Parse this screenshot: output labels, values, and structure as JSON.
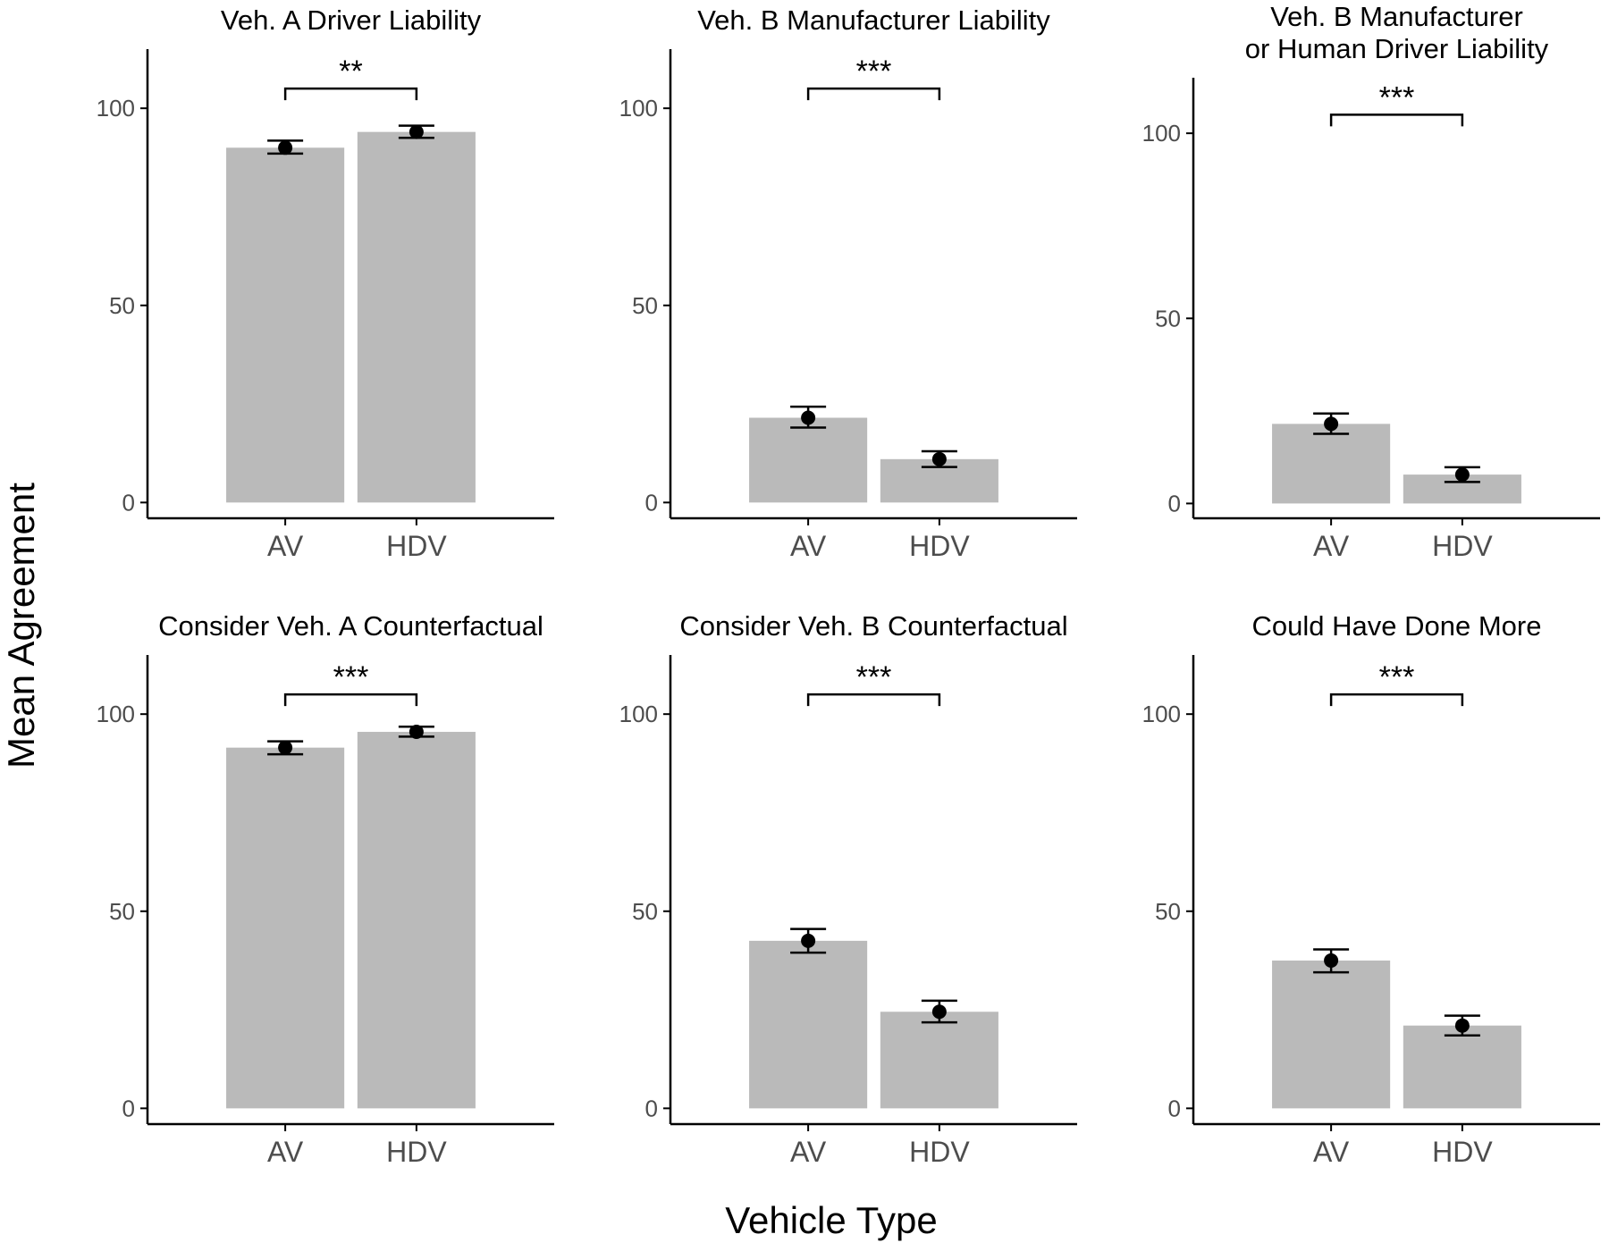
{
  "figure": {
    "xlabel": "Vehicle Type",
    "ylabel": "Mean Agreement"
  },
  "colors": {
    "bar": "#bababa",
    "point": "#000000",
    "axis": "#000000",
    "tick_text": "#4d4d4d"
  },
  "chart_data": [
    {
      "type": "bar",
      "title": [
        "Veh. A Driver Liability"
      ],
      "categories": [
        "AV",
        "HDV"
      ],
      "values": [
        90,
        94
      ],
      "error_low": [
        88.5,
        92.5
      ],
      "error_high": [
        91.8,
        95.6
      ],
      "significance": "**",
      "yticks": [
        0,
        50,
        100
      ],
      "ylim": [
        -4,
        115
      ]
    },
    {
      "type": "bar",
      "title": [
        "Veh. B Manufacturer Liability"
      ],
      "categories": [
        "AV",
        "HDV"
      ],
      "values": [
        21.5,
        11
      ],
      "error_low": [
        19,
        9
      ],
      "error_high": [
        24.3,
        13
      ],
      "significance": "***",
      "yticks": [
        0,
        50,
        100
      ],
      "ylim": [
        -4,
        115
      ]
    },
    {
      "type": "bar",
      "title": [
        "Veh. B Manufacturer",
        "or Human Driver Liability"
      ],
      "categories": [
        "AV",
        "HDV"
      ],
      "values": [
        21.5,
        7.8
      ],
      "error_low": [
        18.8,
        5.8
      ],
      "error_high": [
        24.3,
        9.8
      ],
      "significance": "***",
      "yticks": [
        0,
        50,
        100
      ],
      "ylim": [
        -4,
        115
      ]
    },
    {
      "type": "bar",
      "title": [
        "Consider Veh. A Counterfactual"
      ],
      "categories": [
        "AV",
        "HDV"
      ],
      "values": [
        91.5,
        95.5
      ],
      "error_low": [
        89.8,
        94.3
      ],
      "error_high": [
        93.1,
        96.8
      ],
      "significance": "***",
      "yticks": [
        0,
        50,
        100
      ],
      "ylim": [
        -4,
        115
      ]
    },
    {
      "type": "bar",
      "title": [
        "Consider Veh. B Counterfactual"
      ],
      "categories": [
        "AV",
        "HDV"
      ],
      "values": [
        42.5,
        24.5
      ],
      "error_low": [
        39.5,
        21.8
      ],
      "error_high": [
        45.5,
        27.3
      ],
      "significance": "***",
      "yticks": [
        0,
        50,
        100
      ],
      "ylim": [
        -4,
        115
      ]
    },
    {
      "type": "bar",
      "title": [
        "Could Have Done More"
      ],
      "categories": [
        "AV",
        "HDV"
      ],
      "values": [
        37.5,
        21
      ],
      "error_low": [
        34.5,
        18.5
      ],
      "error_high": [
        40.3,
        23.5
      ],
      "significance": "***",
      "yticks": [
        0,
        50,
        100
      ],
      "ylim": [
        -4,
        115
      ]
    }
  ]
}
